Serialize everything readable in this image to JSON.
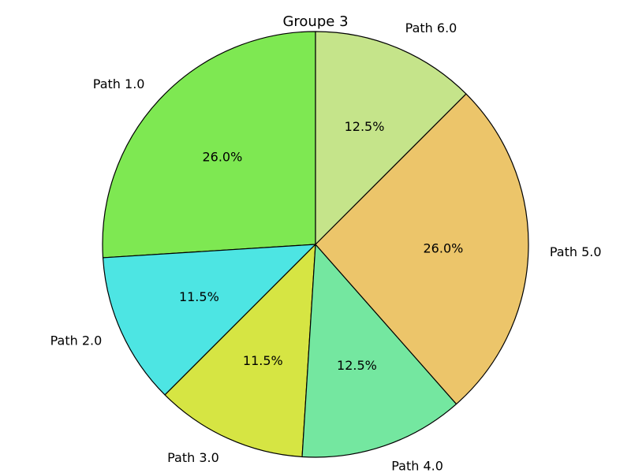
{
  "chart_data": {
    "type": "pie",
    "title": "Groupe 3",
    "categories": [
      "Path 1.0",
      "Path 2.0",
      "Path 3.0",
      "Path 4.0",
      "Path 5.0",
      "Path 6.0"
    ],
    "values": [
      26.0,
      11.5,
      11.5,
      12.5,
      26.0,
      12.5
    ],
    "percent_labels": [
      "26.0%",
      "11.5%",
      "11.5%",
      "12.5%",
      "26.0%",
      "12.5%"
    ],
    "colors": [
      "#7ee852",
      "#4de5e3",
      "#d6e543",
      "#74e7a0",
      "#ecc56a",
      "#c5e48a"
    ],
    "start_angle_deg": 90,
    "direction": "counterclockwise"
  }
}
